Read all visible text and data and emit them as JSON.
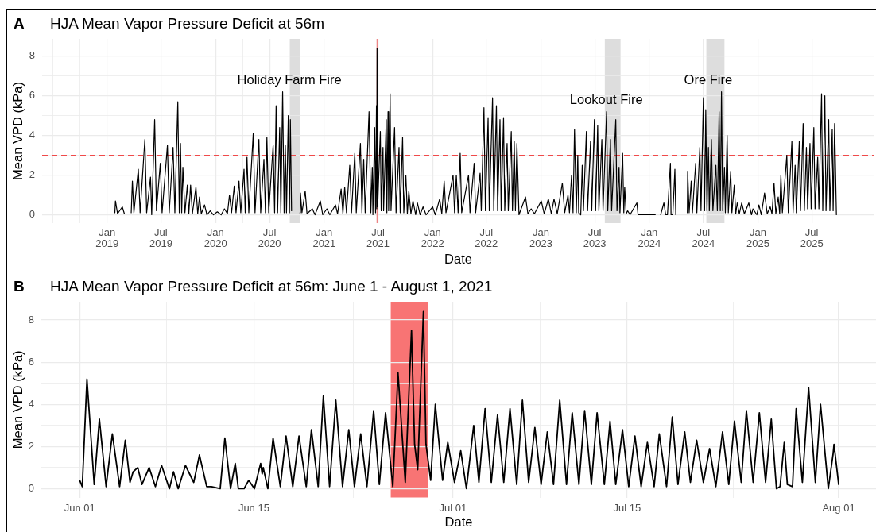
{
  "chart_data": [
    {
      "type": "line",
      "title": "HJA Mean Vapor Pressure Deficit at 56m",
      "xlabel": "Date",
      "ylabel": "Mean VPD (kPa)",
      "grid": true,
      "color": "#000000",
      "annotations": [
        "A",
        {
          "text": "Holiday Farm Fire",
          "x": "2020-09-06",
          "y": 6.75
        },
        {
          "text": "Lookout Fire",
          "x": "2023-08-09",
          "y": 5.75
        },
        {
          "text": "Ore Fire",
          "x": "2024-07-17",
          "y": 6.75
        }
      ],
      "xlim": [
        "2018-05-27",
        "2026-01-28"
      ],
      "ylim": [
        -0.42,
        8.87
      ],
      "xticks": [
        {
          "value": "2018-07",
          "label": null
        },
        {
          "value": "2018-10",
          "label": null
        },
        {
          "value": "2019-01",
          "label": "Jan\n2019"
        },
        {
          "value": "2019-04",
          "label": null
        },
        {
          "value": "2019-07",
          "label": "Jul\n2019"
        },
        {
          "value": "2019-10",
          "label": null
        },
        {
          "value": "2020-01",
          "label": "Jan\n2020"
        },
        {
          "value": "2020-04",
          "label": null
        },
        {
          "value": "2020-07",
          "label": "Jul\n2020"
        },
        {
          "value": "2020-10",
          "label": null
        },
        {
          "value": "2021-01",
          "label": "Jan\n2021"
        },
        {
          "value": "2021-04",
          "label": null
        },
        {
          "value": "2021-07",
          "label": "Jul\n2021"
        },
        {
          "value": "2021-10",
          "label": null
        },
        {
          "value": "2022-01",
          "label": "Jan\n2022"
        },
        {
          "value": "2022-04",
          "label": null
        },
        {
          "value": "2022-07",
          "label": "Jul\n2022"
        },
        {
          "value": "2022-10",
          "label": null
        },
        {
          "value": "2023-01",
          "label": "Jan\n2023"
        },
        {
          "value": "2023-04",
          "label": null
        },
        {
          "value": "2023-07",
          "label": "Jul\n2023"
        },
        {
          "value": "2023-10",
          "label": null
        },
        {
          "value": "2024-01",
          "label": "Jan\n2024"
        },
        {
          "value": "2024-04",
          "label": null
        },
        {
          "value": "2024-07",
          "label": "Jul\n2024"
        },
        {
          "value": "2024-10",
          "label": null
        },
        {
          "value": "2025-01",
          "label": "Jan\n2025"
        },
        {
          "value": "2025-04",
          "label": null
        },
        {
          "value": "2025-07",
          "label": "Jul\n2025"
        },
        {
          "value": "2025-10",
          "label": null
        },
        {
          "value": "2026-01",
          "label": null
        }
      ],
      "yticks": [
        0,
        {
          "value": 1,
          "label": null
        },
        2,
        {
          "value": 3,
          "label": null
        },
        4,
        {
          "value": 5,
          "label": null
        },
        6,
        {
          "value": 7,
          "label": null
        },
        8
      ],
      "ref_lines": [
        {
          "axis": "y",
          "value": 3,
          "color": "#f04a4a",
          "line_style": "dashed"
        },
        {
          "axis": "x",
          "value": "2021-06-28",
          "color": "#ec7d7d"
        }
      ],
      "bands": [
        {
          "axis": "x",
          "from": "2020-09-07",
          "to": "2020-10-13",
          "color": "#dddddd"
        },
        {
          "axis": "x",
          "from": "2023-08-04",
          "to": "2023-09-26",
          "color": "#dddddd"
        },
        {
          "axis": "x",
          "from": "2024-07-11",
          "to": "2024-09-10",
          "color": "#dddddd"
        }
      ],
      "x": [
        "2019-01-27",
        "2019-01-29",
        "2019-02-05",
        "2019-02-21",
        "2019-02-28",
        "2019-03-12",
        "2019-03-23",
        "2019-03-27",
        "2019-04-01",
        "2019-04-16",
        "2019-04-22",
        "2019-05-08",
        "2019-05-14",
        "2019-05-27",
        "2019-05-31",
        "2019-06-10",
        "2019-06-16",
        "2019-06-29",
        "2019-07-05",
        "2019-07-23",
        "2019-07-29",
        "2019-08-11",
        "2019-08-17",
        "2019-08-27",
        "2019-09-01",
        "2019-09-05",
        "2019-09-09",
        "2019-09-13",
        "2019-09-20",
        "2019-09-28",
        "2019-10-03",
        "2019-10-09",
        "2019-10-15",
        "2019-10-27",
        "2019-11-02",
        "2019-11-08",
        "2019-11-14",
        "2019-11-25",
        "2019-12-03",
        "2019-12-14",
        "2019-12-25",
        "2020-01-07",
        "2020-01-20",
        "2020-01-31",
        "2020-02-10",
        "2020-02-17",
        "2020-02-24",
        "2020-03-04",
        "2020-03-10",
        "2020-03-20",
        "2020-03-26",
        "2020-04-06",
        "2020-04-10",
        "2020-04-16",
        "2020-04-22",
        "2020-05-07",
        "2020-05-13",
        "2020-05-26",
        "2020-06-01",
        "2020-06-12",
        "2020-06-17",
        "2020-06-22",
        "2020-06-28",
        "2020-07-13",
        "2020-07-18",
        "2020-07-23",
        "2020-07-28",
        "2020-08-04",
        "2020-08-08",
        "2020-08-14",
        "2020-08-19",
        "2020-08-23",
        "2020-08-27",
        "2020-09-02",
        "2020-09-06",
        "2020-09-09",
        "2020-09-13",
        "2020-09-25",
        "2020-10-11",
        "2020-10-13",
        "2020-10-18",
        "2020-10-29",
        "2020-11-04",
        "2020-11-22",
        "2020-12-01",
        "2020-12-19",
        "2020-12-27",
        "2021-01-10",
        "2021-01-20",
        "2021-02-08",
        "2021-02-15",
        "2021-02-27",
        "2021-03-05",
        "2021-03-11",
        "2021-03-17",
        "2021-03-28",
        "2021-04-03",
        "2021-04-14",
        "2021-04-19",
        "2021-05-03",
        "2021-05-08",
        "2021-05-14",
        "2021-05-19",
        "2021-06-01",
        "2021-06-07",
        "2021-06-12",
        "2021-06-14",
        "2021-06-20",
        "2021-06-23",
        "2021-06-26",
        "2021-06-27",
        "2021-06-28",
        "2021-06-30",
        "2021-07-09",
        "2021-07-12",
        "2021-07-18",
        "2021-07-20",
        "2021-07-29",
        "2021-07-31",
        "2021-08-04",
        "2021-08-06",
        "2021-08-11",
        "2021-08-14",
        "2021-08-26",
        "2021-08-31",
        "2021-09-10",
        "2021-09-14",
        "2021-09-22",
        "2021-09-26",
        "2021-10-03",
        "2021-10-08",
        "2021-10-13",
        "2021-10-20",
        "2021-10-27",
        "2021-11-05",
        "2021-11-11",
        "2021-11-20",
        "2021-11-30",
        "2021-12-10",
        "2022-01-01",
        "2022-01-10",
        "2022-01-25",
        "2022-02-01",
        "2022-02-09",
        "2022-02-15",
        "2022-03-11",
        "2022-03-16",
        "2022-03-22",
        "2022-03-28",
        "2022-04-04",
        "2022-04-09",
        "2022-05-02",
        "2022-05-07",
        "2022-05-21",
        "2022-05-26",
        "2022-06-10",
        "2022-06-14",
        "2022-06-23",
        "2022-06-28",
        "2022-07-07",
        "2022-07-11",
        "2022-07-22",
        "2022-07-26",
        "2022-08-04",
        "2022-08-08",
        "2022-08-16",
        "2022-08-20",
        "2022-08-28",
        "2022-09-01",
        "2022-09-09",
        "2022-09-13",
        "2022-09-23",
        "2022-09-27",
        "2022-10-03",
        "2022-10-07",
        "2022-10-12",
        "2022-10-19",
        "2022-11-10",
        "2022-11-18",
        "2022-11-29",
        "2022-12-10",
        "2023-01-02",
        "2023-01-12",
        "2023-01-26",
        "2023-02-05",
        "2023-02-14",
        "2023-02-25",
        "2023-03-14",
        "2023-03-22",
        "2023-04-02",
        "2023-04-07",
        "2023-04-14",
        "2023-04-19",
        "2023-04-24",
        "2023-04-30",
        "2023-05-05",
        "2023-05-08",
        "2023-05-15",
        "2023-05-20",
        "2023-05-24",
        "2023-06-03",
        "2023-06-07",
        "2023-06-17",
        "2023-06-21",
        "2023-06-30",
        "2023-07-04",
        "2023-07-11",
        "2023-07-15",
        "2023-07-25",
        "2023-07-29",
        "2023-08-10",
        "2023-08-14",
        "2023-08-23",
        "2023-08-27",
        "2023-09-10",
        "2023-09-14",
        "2023-09-21",
        "2023-09-24",
        "2023-10-03",
        "2023-10-07",
        "2023-10-10",
        "2023-10-15",
        "2023-10-20",
        "2023-10-28",
        "2023-11-20",
        "2023-11-24",
        "2024-01-21",
        "2024-02-01",
        "2024-02-08",
        "2024-02-19",
        "2024-02-25",
        "2024-03-02",
        "2024-03-12",
        "2024-03-14",
        "2024-03-20",
        "2024-03-27",
        "2024-03-30",
        "2024-04-15",
        "2024-05-08",
        "2024-05-09",
        "2024-05-14",
        "2024-05-21",
        "2024-05-25",
        "2024-06-05",
        "2024-06-09",
        "2024-06-19",
        "2024-06-23",
        "2024-07-01",
        "2024-07-05",
        "2024-07-09",
        "2024-07-13",
        "2024-07-18",
        "2024-07-21",
        "2024-07-28",
        "2024-08-02",
        "2024-08-12",
        "2024-08-17",
        "2024-08-23",
        "2024-08-27",
        "2024-08-31",
        "2024-09-04",
        "2024-09-10",
        "2024-09-13",
        "2024-09-19",
        "2024-09-23",
        "2024-10-01",
        "2024-10-05",
        "2024-10-13",
        "2024-10-18",
        "2024-10-23",
        "2024-10-30",
        "2024-11-07",
        "2024-11-16",
        "2024-12-01",
        "2024-12-10",
        "2024-12-15",
        "2024-12-28",
        "2025-01-04",
        "2025-01-12",
        "2025-01-23",
        "2025-02-01",
        "2025-02-11",
        "2025-02-17",
        "2025-02-24",
        "2025-03-02",
        "2025-03-10",
        "2025-03-15",
        "2025-03-19",
        "2025-03-24",
        "2025-04-08",
        "2025-04-13",
        "2025-04-25",
        "2025-04-29",
        "2025-05-06",
        "2025-05-10",
        "2025-05-20",
        "2025-05-24",
        "2025-06-02",
        "2025-06-06",
        "2025-06-13",
        "2025-06-17",
        "2025-06-25",
        "2025-06-29",
        "2025-07-08",
        "2025-07-12",
        "2025-07-21",
        "2025-07-25",
        "2025-08-03",
        "2025-08-07",
        "2025-08-14",
        "2025-08-18",
        "2025-08-27",
        "2025-08-31",
        "2025-09-08",
        "2025-09-11",
        "2025-09-16",
        "2025-09-22"
      ],
      "values": [
        0.1,
        0.7,
        0.05,
        0.4,
        0.05,
        null,
        0.1,
        1.7,
        0.1,
        2.3,
        0.1,
        3.8,
        0.1,
        1.9,
        0,
        4.8,
        0.2,
        2.6,
        0.1,
        3.5,
        0.1,
        3.4,
        0.1,
        5.7,
        0.1,
        3.6,
        0.1,
        2.4,
        0.1,
        1.5,
        0.05,
        1.5,
        0.05,
        1.4,
        0.05,
        0.9,
        0.05,
        0.5,
        0,
        0.2,
        0,
        0.15,
        0,
        0.3,
        0.05,
        1,
        0.1,
        1.45,
        0.1,
        1.7,
        0.1,
        2.3,
        0.1,
        2.9,
        0.1,
        4.1,
        0.1,
        3.8,
        0.1,
        2.8,
        0.1,
        3.9,
        0.1,
        3.5,
        0.1,
        5.5,
        0.1,
        4.4,
        0.1,
        6.2,
        0.1,
        3.5,
        0.1,
        5,
        0.1,
        4.8,
        0.2,
        null,
        0.1,
        1.1,
        0.1,
        1.2,
        0.05,
        0.3,
        0,
        0.7,
        0,
        0.3,
        0,
        0.5,
        0.05,
        1.3,
        0.05,
        1.4,
        0.1,
        2.5,
        0.1,
        3.1,
        0.1,
        3.6,
        0.1,
        2.8,
        0.1,
        5.2,
        0.1,
        2.4,
        0,
        4.4,
        0.1,
        5.5,
        0.3,
        8.4,
        0.4,
        4.2,
        0.2,
        3.4,
        0.2,
        4.8,
        0.1,
        5.2,
        0.2,
        6.1,
        0.2,
        4.4,
        0.1,
        3.4,
        0.1,
        3.9,
        0.1,
        2,
        0.05,
        1.2,
        0.05,
        0.7,
        0,
        0.6,
        0,
        0.4,
        0,
        0.4,
        0,
        0.8,
        0.05,
        1.7,
        0.1,
        2,
        0.1,
        2,
        0.1,
        3.1,
        0.1,
        2,
        0.1,
        2.6,
        0.1,
        2.1,
        0.2,
        5.4,
        0.2,
        4.9,
        0.2,
        5.9,
        0.2,
        5.5,
        0.2,
        4.8,
        0.2,
        4.9,
        0.2,
        3.6,
        0.2,
        4.2,
        0.2,
        3.7,
        0.2,
        3.6,
        0,
        0.9,
        0.05,
        0.3,
        0.05,
        0.7,
        0.05,
        0.8,
        0.05,
        0.8,
        0.05,
        1.6,
        0.1,
        1,
        0.1,
        2,
        0.1,
        4.3,
        0.1,
        3,
        0.1,
        0,
        2.5,
        0.2,
        4.2,
        0.2,
        3.7,
        0.2,
        4.8,
        0.2,
        4.5,
        0.2,
        3.8,
        0.2,
        5.2,
        0.2,
        3.8,
        0.2,
        4.8,
        0.2,
        2.4,
        0.1,
        3.1,
        0.1,
        1.4,
        0.05,
        0.2,
        0,
        0.6,
        0,
        0,
        null,
        0,
        0.6,
        0,
        0,
        2.6,
        0,
        0,
        2.3,
        0,
        null,
        0.1,
        2.2,
        0.1,
        1.7,
        0.1,
        2.6,
        0.1,
        3.4,
        0.2,
        5.9,
        0.2,
        5.3,
        0.2,
        3.4,
        0.2,
        3.8,
        0.2,
        2.5,
        0.2,
        5.2,
        0.2,
        6.2,
        0.2,
        2.4,
        0.1,
        4,
        0.1,
        2.2,
        0.1,
        1.5,
        0.05,
        0.6,
        0.05,
        0.6,
        0.05,
        0.6,
        0,
        0.3,
        0,
        0.5,
        0,
        1.1,
        0.05,
        0.4,
        0.05,
        1.6,
        0.05,
        0.9,
        0.05,
        2,
        0.1,
        3,
        0.1,
        3.7,
        0.1,
        2.5,
        0.1,
        3.7,
        0.2,
        4.6,
        0.2,
        3.4,
        0.3,
        3.6,
        0.3,
        4.4,
        0.3,
        2.9,
        0.3,
        6.1,
        0.2,
        6,
        0.2,
        4.8,
        0.2,
        4.3,
        0.2,
        4.6,
        0
      ]
    },
    {
      "type": "line",
      "title": "HJA Mean Vapor Pressure Deficit at 56m: June 1 - August 1, 2021",
      "xlabel": "Date",
      "ylabel": "Mean VPD (kPa)",
      "grid": true,
      "color": "#000000",
      "annotations": [
        "B"
      ],
      "xlim": [
        "2021-05-28T22:00",
        "2021-08-04T00:00"
      ],
      "ylim": [
        -0.42,
        8.87
      ],
      "xticks": [
        {
          "value": "2021-06-01",
          "label": "Jun 01"
        },
        {
          "value": "2021-06-08",
          "label": null
        },
        {
          "value": "2021-06-15",
          "label": "Jun 15"
        },
        {
          "value": "2021-06-23",
          "label": null
        },
        {
          "value": "2021-07-01",
          "label": "Jul 01"
        },
        {
          "value": "2021-07-08",
          "label": null
        },
        {
          "value": "2021-07-15",
          "label": "Jul 15"
        },
        {
          "value": "2021-07-23T12:00",
          "label": null
        },
        {
          "value": "2021-08-01",
          "label": "Aug 01"
        }
      ],
      "yticks": [
        0,
        {
          "value": 1,
          "label": null
        },
        2,
        {
          "value": 3,
          "label": null
        },
        4,
        {
          "value": 5,
          "label": null
        },
        6,
        {
          "value": 7,
          "label": null
        },
        8
      ],
      "bands": [
        {
          "axis": "x",
          "from": "2021-06-26",
          "to": "2021-06-29",
          "color": "#f87474"
        }
      ],
      "x": [
        "2021-06-01T00:00",
        "2021-06-01T05:00",
        "2021-06-01T14:00",
        "2021-06-02T04:00",
        "2021-06-02T14:00",
        "2021-06-03T03:00",
        "2021-06-03T15:00",
        "2021-06-04T05:00",
        "2021-06-04T16:00",
        "2021-06-05T01:00",
        "2021-06-05T07:00",
        "2021-06-05T16:00",
        "2021-06-06T00:00",
        "2021-06-06T14:00",
        "2021-06-07T02:00",
        "2021-06-07T14:00",
        "2021-06-08T05:00",
        "2021-06-08T13:00",
        "2021-06-08T22:00",
        "2021-06-09T12:00",
        "2021-06-10T04:00",
        "2021-06-10T15:00",
        "2021-06-11T05:00",
        "2021-06-11T14:00",
        "2021-06-12T07:00",
        "2021-06-12T16:00",
        "2021-06-13T03:00",
        "2021-06-13T12:00",
        "2021-06-13T18:00",
        "2021-06-14T05:00",
        "2021-06-14T14:00",
        "2021-06-15T01:00",
        "2021-06-15T13:00",
        "2021-06-15T16:00",
        "2021-06-15T18:00",
        "2021-06-16T03:00",
        "2021-06-16T13:00",
        "2021-06-17T03:00",
        "2021-06-17T14:00",
        "2021-06-18T03:00",
        "2021-06-18T15:00",
        "2021-06-19T05:00",
        "2021-06-19T15:00",
        "2021-06-20T04:00",
        "2021-06-20T14:00",
        "2021-06-21T02:00",
        "2021-06-21T14:00",
        "2021-06-22T03:00",
        "2021-06-22T15:00",
        "2021-06-23T02:00",
        "2021-06-23T14:00",
        "2021-06-24T02:00",
        "2021-06-24T15:00",
        "2021-06-25T02:00",
        "2021-06-25T14:00",
        "2021-06-26T04:00",
        "2021-06-26T14:00",
        "2021-06-27T04:00",
        "2021-06-27T16:00",
        "2021-06-27T21:00",
        "2021-06-27T22:00",
        "2021-06-28T04:00",
        "2021-06-28T15:00",
        "2021-06-28T20:00",
        "2021-06-29T05:00",
        "2021-06-29T14:00",
        "2021-06-30T04:00",
        "2021-06-30T14:00",
        "2021-07-01T03:00",
        "2021-07-01T15:00",
        "2021-07-02T02:00",
        "2021-07-02T16:00",
        "2021-07-03T02:00",
        "2021-07-03T14:00",
        "2021-07-04T02:00",
        "2021-07-04T14:00",
        "2021-07-05T02:00",
        "2021-07-05T14:00",
        "2021-07-06T03:00",
        "2021-07-06T14:00",
        "2021-07-07T02:00",
        "2021-07-07T14:00",
        "2021-07-08T02:00",
        "2021-07-08T14:00",
        "2021-07-09T02:00",
        "2021-07-09T14:00",
        "2021-07-10T03:00",
        "2021-07-10T14:00",
        "2021-07-11T03:00",
        "2021-07-11T14:00",
        "2021-07-12T03:00",
        "2021-07-12T14:00",
        "2021-07-13T04:00",
        "2021-07-13T15:00",
        "2021-07-14T02:00",
        "2021-07-14T15:00",
        "2021-07-15T03:00",
        "2021-07-15T15:00",
        "2021-07-16T03:00",
        "2021-07-16T15:00",
        "2021-07-17T04:00",
        "2021-07-17T14:00",
        "2021-07-18T04:00",
        "2021-07-18T15:00",
        "2021-07-19T02:00",
        "2021-07-19T15:00",
        "2021-07-20T02:00",
        "2021-07-20T14:00",
        "2021-07-21T03:00",
        "2021-07-21T15:00",
        "2021-07-22T03:00",
        "2021-07-22T16:00",
        "2021-07-23T04:00",
        "2021-07-23T15:00",
        "2021-07-24T04:00",
        "2021-07-24T14:00",
        "2021-07-25T03:00",
        "2021-07-25T15:00",
        "2021-07-26T03:00",
        "2021-07-26T14:00",
        "2021-07-26T20:00",
        "2021-07-27T00:00",
        "2021-07-27T07:00",
        "2021-07-27T15:00",
        "2021-07-27T21:00",
        "2021-07-28T07:00",
        "2021-07-28T14:00",
        "2021-07-29T02:00",
        "2021-07-29T14:00",
        "2021-07-30T03:00",
        "2021-07-30T09:00",
        "2021-07-30T13:00",
        "2021-07-31T04:00",
        "2021-07-31T13:00",
        "2021-07-31T15:00",
        "2021-08-01T00:00"
      ],
      "values": [
        0.4,
        0.1,
        5.2,
        0.2,
        3.3,
        0.1,
        2.6,
        0.1,
        2.3,
        0.3,
        0.8,
        1,
        0.2,
        1,
        0.1,
        1.1,
        0,
        0.8,
        0,
        1.1,
        0.3,
        1.6,
        0.1,
        0.1,
        0,
        2.4,
        0,
        1.2,
        0,
        0,
        0.4,
        0,
        1.2,
        0.7,
        1,
        0,
        2.4,
        0.1,
        2.5,
        0.1,
        2.5,
        0.1,
        2.8,
        0.1,
        4.4,
        0.1,
        4.2,
        0.1,
        2.8,
        0.1,
        2.6,
        0.1,
        3.7,
        0.2,
        3.6,
        0.1,
        5.5,
        0.3,
        7.5,
        3,
        2.1,
        0.9,
        8.4,
        2.1,
        0.4,
        4,
        0.4,
        2.2,
        0.3,
        1.8,
        0,
        3,
        0.3,
        3.8,
        0.3,
        3.5,
        0.3,
        3.8,
        0.2,
        4.2,
        0.3,
        2.9,
        0.2,
        2.7,
        0.2,
        4.2,
        0.2,
        3.6,
        0.2,
        3.7,
        0.2,
        3.6,
        0.2,
        3.2,
        0.2,
        2.8,
        0.1,
        2.5,
        0.1,
        2.2,
        0.1,
        2.6,
        0.1,
        3.4,
        0.2,
        2.7,
        0.3,
        2.3,
        0.3,
        1.9,
        0.1,
        2.7,
        0.2,
        3.2,
        0.3,
        3.7,
        0.3,
        3.6,
        0.3,
        3.3,
        1.3,
        0,
        0.1,
        2.2,
        0.2,
        0.1,
        3.8,
        0.3,
        4.8,
        0.3,
        2.5,
        4,
        0,
        1.6,
        2.1,
        0.2
      ]
    }
  ]
}
